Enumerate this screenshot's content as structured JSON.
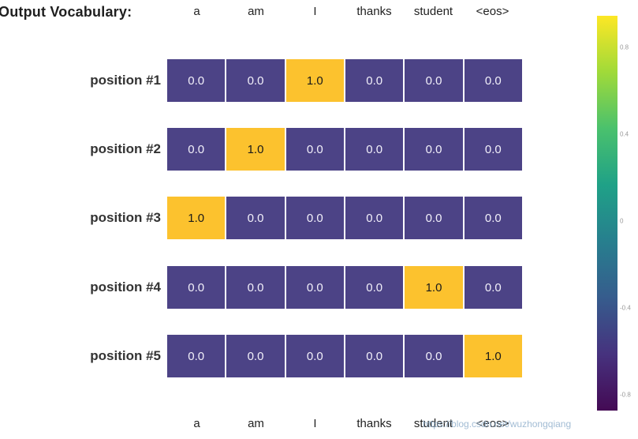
{
  "figure": {
    "title": "Output Vocabulary:",
    "watermark": "https://blog.csdn.net/wuzhongqiang"
  },
  "chart_data": {
    "type": "heatmap",
    "title": "Output Vocabulary:",
    "categories": [
      "a",
      "am",
      "I",
      "thanks",
      "student",
      "<eos>"
    ],
    "rows": [
      {
        "label": "position #1",
        "values": [
          0.0,
          0.0,
          1.0,
          0.0,
          0.0,
          0.0
        ]
      },
      {
        "label": "position #2",
        "values": [
          0.0,
          1.0,
          0.0,
          0.0,
          0.0,
          0.0
        ]
      },
      {
        "label": "position #3",
        "values": [
          1.0,
          0.0,
          0.0,
          0.0,
          0.0,
          0.0
        ]
      },
      {
        "label": "position #4",
        "values": [
          0.0,
          0.0,
          0.0,
          0.0,
          1.0,
          0.0
        ]
      },
      {
        "label": "position #5",
        "values": [
          0.0,
          0.0,
          0.0,
          0.0,
          0.0,
          1.0
        ]
      }
    ],
    "value_range": [
      0.0,
      1.0
    ],
    "colors": {
      "low": "#4c4386",
      "high": "#fcc22e",
      "low_text": "#f2f0fa",
      "high_text": "#1a1a1a"
    },
    "colorbar": {
      "gradient": [
        "#fde725",
        "#a0da39",
        "#4ac16d",
        "#1fa187",
        "#277f8e",
        "#365c8d",
        "#46327e",
        "#440a54"
      ],
      "ticks": [
        "0.8",
        "0.4",
        "0",
        "-0.4",
        "-0.8"
      ],
      "position": "right"
    },
    "grid": false,
    "legend_position": "right-colorbar"
  }
}
